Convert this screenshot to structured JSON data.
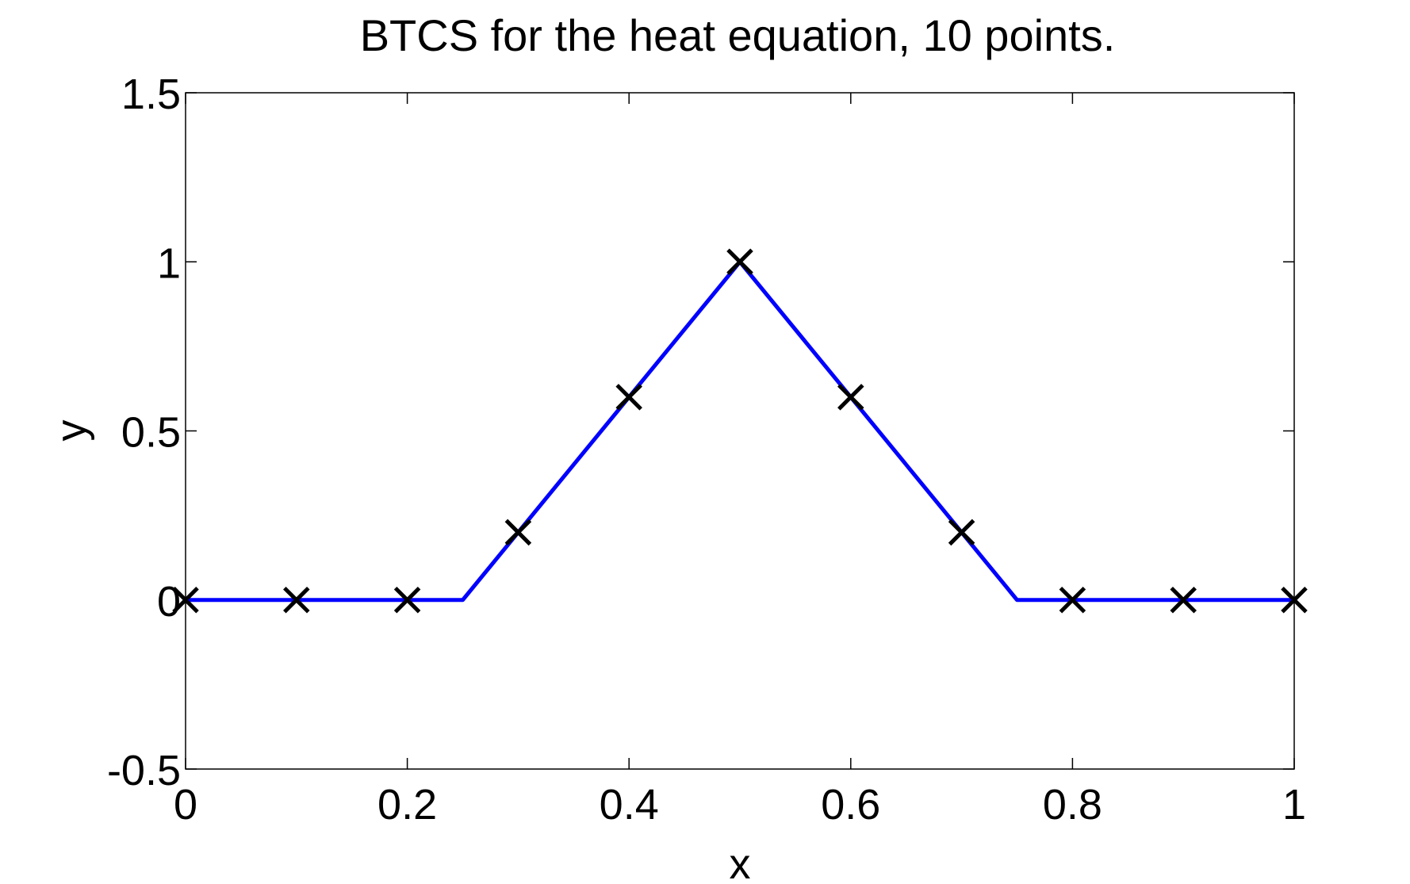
{
  "chart_data": {
    "type": "line",
    "title": "BTCS for the heat equation, 10 points.",
    "xlabel": "x",
    "ylabel": "y",
    "xlim": [
      0,
      1
    ],
    "ylim": [
      -0.5,
      1.5
    ],
    "xticks": [
      0,
      0.2,
      0.4,
      0.6,
      0.8,
      1
    ],
    "xtick_labels": [
      "0",
      "0.2",
      "0.4",
      "0.6",
      "0.8",
      "1"
    ],
    "yticks": [
      -0.5,
      0,
      0.5,
      1,
      1.5
    ],
    "ytick_labels": [
      "-0.5",
      "0",
      "0.5",
      "1",
      "1.5"
    ],
    "grid": false,
    "legend": "none",
    "series": [
      {
        "style": "solid-line",
        "color": "#0000ff",
        "x": [
          0,
          0.25,
          0.5,
          0.75,
          1
        ],
        "y": [
          0,
          0,
          1,
          0,
          0
        ]
      },
      {
        "style": "x-markers",
        "color": "#000000",
        "x": [
          0,
          0.1,
          0.2,
          0.3,
          0.4,
          0.5,
          0.6,
          0.7,
          0.8,
          0.9,
          1
        ],
        "y": [
          0,
          0,
          0,
          0.2,
          0.6,
          1,
          0.6,
          0.2,
          0,
          0,
          0
        ]
      }
    ]
  }
}
